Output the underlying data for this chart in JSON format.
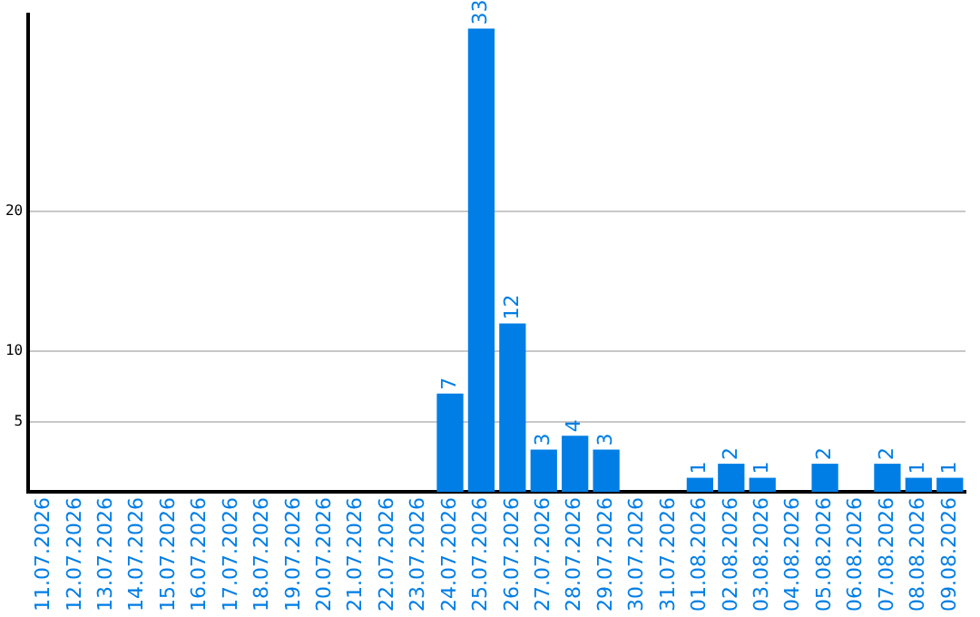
{
  "chart_data": {
    "type": "bar",
    "categories": [
      "11.07.2026",
      "12.07.2026",
      "13.07.2026",
      "14.07.2026",
      "15.07.2026",
      "16.07.2026",
      "17.07.2026",
      "18.07.2026",
      "19.07.2026",
      "20.07.2026",
      "21.07.2026",
      "22.07.2026",
      "23.07.2026",
      "24.07.2026",
      "25.07.2026",
      "26.07.2026",
      "27.07.2026",
      "28.07.2026",
      "29.07.2026",
      "30.07.2026",
      "31.07.2026",
      "01.08.2026",
      "02.08.2026",
      "03.08.2026",
      "04.08.2026",
      "05.08.2026",
      "06.08.2026",
      "07.08.2026",
      "08.08.2026",
      "09.08.2026"
    ],
    "values": [
      0,
      0,
      0,
      0,
      0,
      0,
      0,
      0,
      0,
      0,
      0,
      0,
      0,
      7,
      33,
      12,
      3,
      4,
      3,
      0,
      0,
      1,
      2,
      1,
      0,
      2,
      0,
      2,
      1,
      1
    ],
    "value_labels": [
      null,
      null,
      null,
      null,
      null,
      null,
      null,
      null,
      null,
      null,
      null,
      null,
      null,
      "7",
      "33",
      "12",
      "3",
      "4",
      "3",
      null,
      null,
      "1",
      "2",
      "1",
      null,
      "2",
      null,
      "2",
      "1",
      "1"
    ],
    "color": "#007ee5",
    "ylim": [
      0,
      34
    ],
    "yticks": [
      5,
      10,
      20
    ],
    "grid": "y",
    "legend": false
  }
}
